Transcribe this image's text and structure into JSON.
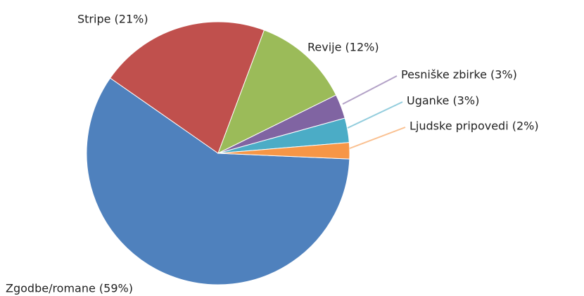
{
  "chart_data": {
    "type": "pie",
    "values": [
      59,
      21,
      12,
      3,
      3,
      2
    ],
    "value_labels": [
      "Zgodbe/romane (59%)",
      "Stripe (21%)",
      "Revije (12%)",
      "Pesniške zbirke (3%)",
      "Uganke (3%)",
      "Ljudske pripovedi (2%)"
    ],
    "colors": [
      "#4f81bd",
      "#c0504d",
      "#9bbb59",
      "#8064a2",
      "#4bacc6",
      "#f79646"
    ]
  }
}
